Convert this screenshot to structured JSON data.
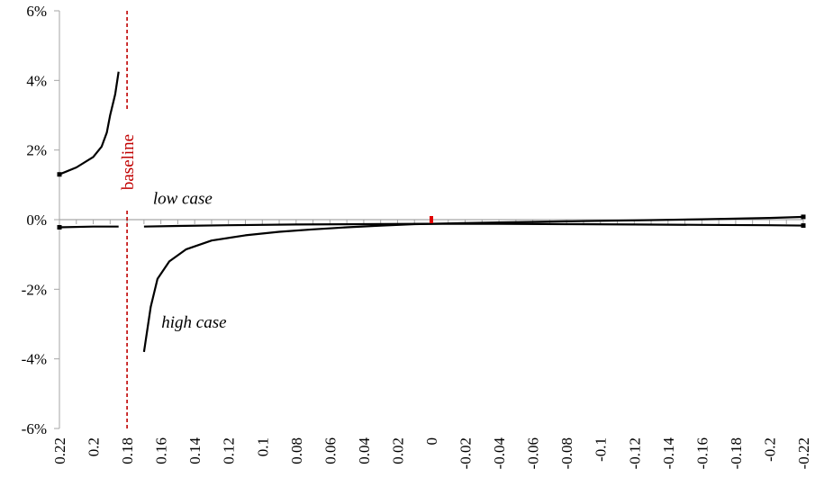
{
  "chart_data": {
    "type": "line",
    "title": "",
    "xlabel": "",
    "ylabel": "",
    "x_reversed": true,
    "xlim": [
      0.22,
      -0.22
    ],
    "ylim": [
      -6,
      6
    ],
    "grid": false,
    "legend": "none",
    "x_tick_labels": [
      "0.22",
      "0.2",
      "0.18",
      "0.16",
      "0.14",
      "0.12",
      "0.1",
      "0.08",
      "0.06",
      "0.04",
      "0.02",
      "0",
      "-0.02",
      "-0.04",
      "-0.06",
      "-0.08",
      "-0.1",
      "-0.12",
      "-0.14",
      "-0.16",
      "-0.18",
      "-0.2",
      "-0.22"
    ],
    "x_tick_values": [
      0.22,
      0.2,
      0.18,
      0.16,
      0.14,
      0.12,
      0.1,
      0.08,
      0.06,
      0.04,
      0.02,
      0,
      -0.02,
      -0.04,
      -0.06,
      -0.08,
      -0.1,
      -0.12,
      -0.14,
      -0.16,
      -0.18,
      -0.2,
      -0.22
    ],
    "y_tick_labels": [
      "6%",
      "4%",
      "2%",
      "0%",
      "-2%",
      "-4%",
      "-6%"
    ],
    "y_tick_values": [
      6,
      4,
      2,
      0,
      -2,
      -4,
      -6
    ],
    "series": [
      {
        "color": "#000000",
        "segments": [
          [
            [
              0.22,
              1.3
            ],
            [
              0.21,
              1.5
            ],
            [
              0.2,
              1.8
            ],
            [
              0.195,
              2.1
            ],
            [
              0.192,
              2.5
            ],
            [
              0.19,
              3.0
            ],
            [
              0.187,
              3.6
            ],
            [
              0.185,
              4.25
            ]
          ],
          [
            [
              0.17,
              -0.2
            ],
            [
              0.15,
              -0.18
            ],
            [
              0.12,
              -0.16
            ],
            [
              0.08,
              -0.14
            ],
            [
              0.04,
              -0.13
            ],
            [
              0,
              -0.12
            ],
            [
              -0.04,
              -0.12
            ],
            [
              -0.08,
              -0.13
            ],
            [
              -0.12,
              -0.14
            ],
            [
              -0.16,
              -0.15
            ],
            [
              -0.2,
              -0.16
            ],
            [
              -0.22,
              -0.17
            ]
          ]
        ]
      },
      {
        "color": "#000000",
        "segments": [
          [
            [
              0.22,
              -0.22
            ],
            [
              0.2,
              -0.2
            ],
            [
              0.185,
              -0.2
            ]
          ],
          [
            [
              0.17,
              -3.8
            ],
            [
              0.166,
              -2.5
            ],
            [
              0.162,
              -1.7
            ],
            [
              0.155,
              -1.2
            ],
            [
              0.145,
              -0.85
            ],
            [
              0.13,
              -0.6
            ],
            [
              0.11,
              -0.45
            ],
            [
              0.09,
              -0.35
            ],
            [
              0.07,
              -0.28
            ],
            [
              0.05,
              -0.22
            ],
            [
              0.03,
              -0.17
            ],
            [
              0.01,
              -0.13
            ],
            [
              0,
              -0.12
            ],
            [
              -0.04,
              -0.08
            ],
            [
              -0.08,
              -0.05
            ],
            [
              -0.12,
              -0.02
            ],
            [
              -0.16,
              0.01
            ],
            [
              -0.2,
              0.05
            ],
            [
              -0.22,
              0.08
            ]
          ]
        ]
      }
    ],
    "markers": [
      {
        "x": 0.22,
        "y": 1.3
      },
      {
        "x": 0.22,
        "y": -0.22
      },
      {
        "x": -0.22,
        "y": 0.08
      },
      {
        "x": -0.22,
        "y": -0.17
      }
    ],
    "baseline": {
      "x": 0.18,
      "label": "baseline",
      "color": "#c00000"
    },
    "zero_marker": {
      "x": 0,
      "y": 0,
      "color": "#e00000"
    },
    "annotations": [
      {
        "text": "low case",
        "x": 0.17,
        "y": 0.45
      },
      {
        "text": "high case",
        "x": 0.165,
        "y": -3.1
      }
    ]
  }
}
